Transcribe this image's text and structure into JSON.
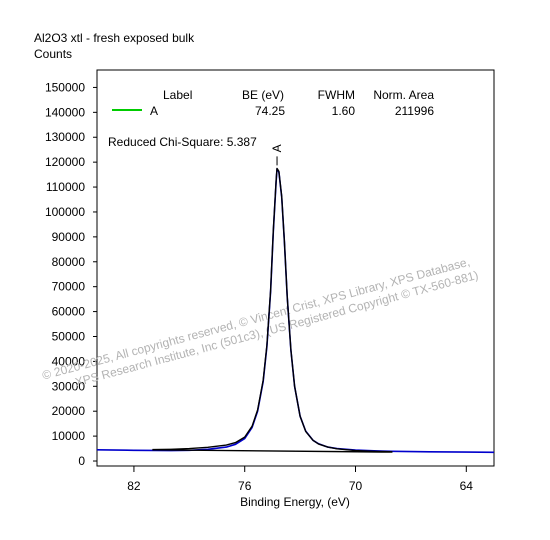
{
  "title": "Al2O3 xtl - fresh exposed bulk",
  "chart_data": {
    "type": "line",
    "title": "Al2O3 xtl - fresh exposed bulk",
    "xlabel": "Binding Energy, (eV)",
    "ylabel": "Counts",
    "xlim": [
      84,
      62.5
    ],
    "x_reversed": true,
    "ylim": [
      -2000,
      157000
    ],
    "xticks": [
      82,
      76,
      70,
      64
    ],
    "xtick_labels": [
      "82",
      "76",
      "70",
      "64"
    ],
    "yticks": [
      0,
      10000,
      20000,
      30000,
      40000,
      50000,
      60000,
      70000,
      80000,
      90000,
      100000,
      110000,
      120000,
      130000,
      140000,
      150000
    ],
    "ytick_labels": [
      "0",
      "10000",
      "20000",
      "30000",
      "40000",
      "50000",
      "60000",
      "70000",
      "80000",
      "90000",
      "100000",
      "110000",
      "120000",
      "130000",
      "140000",
      "150000"
    ],
    "grid": false,
    "legend_position": "top",
    "legend": {
      "headers": [
        "Label",
        "BE (eV)",
        "FWHM",
        "Norm. Area"
      ],
      "rows": [
        {
          "label": "A",
          "be": "74.25",
          "fwhm": "1.60",
          "area": "211996",
          "color": "#00cc00"
        }
      ]
    },
    "annotation": "Reduced Chi-Square: 5.387",
    "peak_marker_label": "A",
    "peak_marker_x": 74.25,
    "series": [
      {
        "role": "data",
        "color": "#0000cc",
        "x": [
          84.0,
          82.0,
          80.0,
          79.0,
          78.0,
          77.0,
          76.5,
          76.0,
          75.6,
          75.3,
          75.0,
          74.8,
          74.6,
          74.45,
          74.3,
          74.25,
          74.15,
          74.0,
          73.85,
          73.7,
          73.5,
          73.3,
          73.0,
          72.7,
          72.3,
          72.0,
          71.5,
          71.0,
          70.0,
          69.0,
          68.0,
          67.0,
          66.0,
          64.0,
          62.5
        ],
        "y": [
          4500,
          4300,
          4200,
          4300,
          4700,
          5600,
          6700,
          9000,
          13500,
          20000,
          32000,
          46000,
          68000,
          92000,
          112000,
          117200,
          116000,
          106000,
          88000,
          66000,
          44500,
          30000,
          18000,
          12000,
          8300,
          6900,
          5600,
          5000,
          4400,
          4100,
          3900,
          3800,
          3700,
          3600,
          3500
        ]
      },
      {
        "role": "envelope",
        "color": "#000000",
        "x": [
          81.0,
          80.0,
          79.0,
          78.0,
          77.0,
          76.5,
          76.0,
          75.6,
          75.3,
          75.0,
          74.8,
          74.6,
          74.45,
          74.3,
          74.25,
          74.15,
          74.0,
          73.85,
          73.7,
          73.5,
          73.3,
          73.0,
          72.7,
          72.3,
          72.0,
          71.5,
          71.0,
          70.0,
          69.0,
          68.0
        ],
        "y": [
          4600,
          4700,
          5000,
          5500,
          6400,
          7400,
          9600,
          14000,
          20500,
          32500,
          46500,
          68500,
          92500,
          112500,
          117500,
          116300,
          106300,
          88200,
          66100,
          44600,
          30000,
          18000,
          11900,
          8300,
          6800,
          5600,
          4900,
          4200,
          3900,
          3700
        ]
      },
      {
        "role": "background",
        "color": "#000000",
        "x": [
          81.0,
          68.0
        ],
        "y": [
          4500,
          3600
        ]
      }
    ]
  },
  "watermark": {
    "line1": "©  2020-2025,  All copyrights reserved,   ©  Vincent Crist,  XPS Library, XPS Database,",
    "line2": "XPS Research Institute, Inc (501c3),  (US Registered Copyright © TX-560-881)"
  }
}
